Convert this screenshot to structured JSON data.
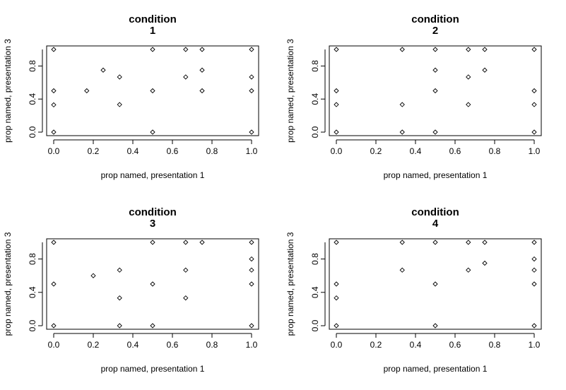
{
  "chart_data": [
    {
      "type": "scatter",
      "title_line1": "condition",
      "title_line2": "1",
      "xlabel": "prop named, presentation 1",
      "ylabel": "prop named, presentation 3",
      "xlim": [
        0,
        1
      ],
      "ylim": [
        0,
        1
      ],
      "xticks": [
        "0.0",
        "0.2",
        "0.4",
        "0.6",
        "0.8",
        "1.0"
      ],
      "yticks": [
        "0.0",
        "0.4",
        "0.8"
      ],
      "points": [
        {
          "x": 0.0,
          "y": 1.0
        },
        {
          "x": 0.0,
          "y": 0.5
        },
        {
          "x": 0.0,
          "y": 0.33
        },
        {
          "x": 0.0,
          "y": 0.0
        },
        {
          "x": 0.167,
          "y": 0.5
        },
        {
          "x": 0.25,
          "y": 0.75
        },
        {
          "x": 0.333,
          "y": 0.667
        },
        {
          "x": 0.333,
          "y": 0.333
        },
        {
          "x": 0.5,
          "y": 1.0
        },
        {
          "x": 0.5,
          "y": 0.5
        },
        {
          "x": 0.5,
          "y": 0.0
        },
        {
          "x": 0.667,
          "y": 1.0
        },
        {
          "x": 0.667,
          "y": 0.667
        },
        {
          "x": 0.75,
          "y": 1.0
        },
        {
          "x": 0.75,
          "y": 0.75
        },
        {
          "x": 0.75,
          "y": 0.5
        },
        {
          "x": 1.0,
          "y": 1.0
        },
        {
          "x": 1.0,
          "y": 0.667
        },
        {
          "x": 1.0,
          "y": 0.5
        },
        {
          "x": 1.0,
          "y": 0.0
        }
      ]
    },
    {
      "type": "scatter",
      "title_line1": "condition",
      "title_line2": "2",
      "xlabel": "prop named, presentation 1",
      "ylabel": "prop named, presentation 3",
      "xlim": [
        0,
        1
      ],
      "ylim": [
        0,
        1
      ],
      "xticks": [
        "0.0",
        "0.2",
        "0.4",
        "0.6",
        "0.8",
        "1.0"
      ],
      "yticks": [
        "0.0",
        "0.4",
        "0.8"
      ],
      "points": [
        {
          "x": 0.0,
          "y": 1.0
        },
        {
          "x": 0.0,
          "y": 0.5
        },
        {
          "x": 0.0,
          "y": 0.333
        },
        {
          "x": 0.0,
          "y": 0.0
        },
        {
          "x": 0.333,
          "y": 1.0
        },
        {
          "x": 0.333,
          "y": 0.333
        },
        {
          "x": 0.333,
          "y": 0.0
        },
        {
          "x": 0.5,
          "y": 1.0
        },
        {
          "x": 0.5,
          "y": 0.75
        },
        {
          "x": 0.5,
          "y": 0.5
        },
        {
          "x": 0.5,
          "y": 0.0
        },
        {
          "x": 0.667,
          "y": 1.0
        },
        {
          "x": 0.667,
          "y": 0.667
        },
        {
          "x": 0.667,
          "y": 0.333
        },
        {
          "x": 0.75,
          "y": 1.0
        },
        {
          "x": 0.75,
          "y": 0.75
        },
        {
          "x": 1.0,
          "y": 1.0
        },
        {
          "x": 1.0,
          "y": 0.5
        },
        {
          "x": 1.0,
          "y": 0.333
        },
        {
          "x": 1.0,
          "y": 0.0
        }
      ]
    },
    {
      "type": "scatter",
      "title_line1": "condition",
      "title_line2": "3",
      "xlabel": "prop named, presentation 1",
      "ylabel": "prop named, presentation 3",
      "xlim": [
        0,
        1
      ],
      "ylim": [
        0,
        1
      ],
      "xticks": [
        "0.0",
        "0.2",
        "0.4",
        "0.6",
        "0.8",
        "1.0"
      ],
      "yticks": [
        "0.0",
        "0.4",
        "0.8"
      ],
      "points": [
        {
          "x": 0.0,
          "y": 1.0
        },
        {
          "x": 0.0,
          "y": 0.5
        },
        {
          "x": 0.0,
          "y": 0.0
        },
        {
          "x": 0.2,
          "y": 0.6
        },
        {
          "x": 0.333,
          "y": 0.667
        },
        {
          "x": 0.333,
          "y": 0.333
        },
        {
          "x": 0.333,
          "y": 0.0
        },
        {
          "x": 0.5,
          "y": 1.0
        },
        {
          "x": 0.5,
          "y": 0.5
        },
        {
          "x": 0.5,
          "y": 0.0
        },
        {
          "x": 0.667,
          "y": 1.0
        },
        {
          "x": 0.667,
          "y": 0.667
        },
        {
          "x": 0.667,
          "y": 0.333
        },
        {
          "x": 0.75,
          "y": 1.0
        },
        {
          "x": 1.0,
          "y": 1.0
        },
        {
          "x": 1.0,
          "y": 0.8
        },
        {
          "x": 1.0,
          "y": 0.667
        },
        {
          "x": 1.0,
          "y": 0.5
        },
        {
          "x": 1.0,
          "y": 0.0
        }
      ]
    },
    {
      "type": "scatter",
      "title_line1": "condition",
      "title_line2": "4",
      "xlabel": "prop named, presentation 1",
      "ylabel": "prop named, presentation 3",
      "xlim": [
        0,
        1
      ],
      "ylim": [
        0,
        1
      ],
      "xticks": [
        "0.0",
        "0.2",
        "0.4",
        "0.6",
        "0.8",
        "1.0"
      ],
      "yticks": [
        "0.0",
        "0.4",
        "0.8"
      ],
      "points": [
        {
          "x": 0.0,
          "y": 1.0
        },
        {
          "x": 0.0,
          "y": 0.5
        },
        {
          "x": 0.0,
          "y": 0.333
        },
        {
          "x": 0.0,
          "y": 0.0
        },
        {
          "x": 0.333,
          "y": 1.0
        },
        {
          "x": 0.333,
          "y": 0.667
        },
        {
          "x": 0.5,
          "y": 1.0
        },
        {
          "x": 0.5,
          "y": 0.5
        },
        {
          "x": 0.5,
          "y": 0.0
        },
        {
          "x": 0.667,
          "y": 1.0
        },
        {
          "x": 0.667,
          "y": 0.667
        },
        {
          "x": 0.75,
          "y": 1.0
        },
        {
          "x": 0.75,
          "y": 0.75
        },
        {
          "x": 1.0,
          "y": 1.0
        },
        {
          "x": 1.0,
          "y": 0.8
        },
        {
          "x": 1.0,
          "y": 0.667
        },
        {
          "x": 1.0,
          "y": 0.5
        },
        {
          "x": 1.0,
          "y": 0.0
        }
      ]
    }
  ]
}
